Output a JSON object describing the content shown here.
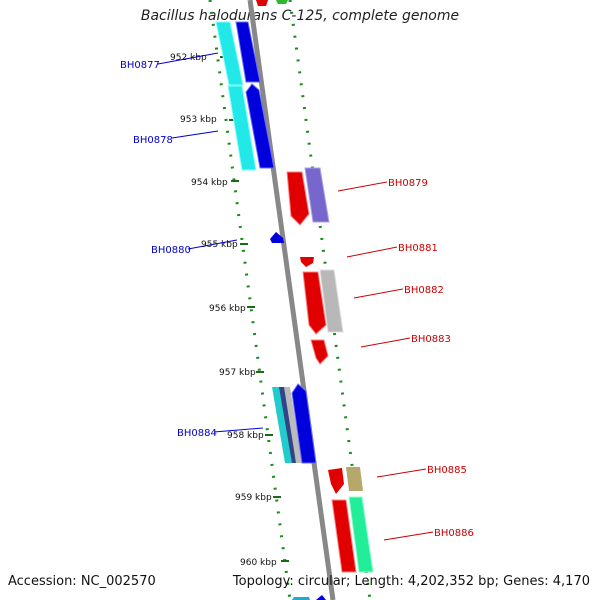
{
  "title": "Bacillus halodurans C-125, complete genome",
  "footer": {
    "accession": "Accession: NC_002570",
    "summary": "Topology: circular; Length: 4,202,352 bp; Genes: 4,170"
  },
  "ticks": [
    "952 kbp",
    "953 kbp",
    "954 kbp",
    "955 kbp",
    "956 kbp",
    "957 kbp",
    "958 kbp",
    "959 kbp",
    "960 kbp"
  ],
  "genes": [
    {
      "name": "BH0877",
      "strand": "reverse",
      "color": "#0000cc"
    },
    {
      "name": "BH0878",
      "strand": "reverse",
      "color": "#0000cc"
    },
    {
      "name": "BH0879",
      "strand": "forward",
      "color": "#cc0000"
    },
    {
      "name": "BH0880",
      "strand": "reverse",
      "color": "#0000cc"
    },
    {
      "name": "BH0881",
      "strand": "forward",
      "color": "#cc0000"
    },
    {
      "name": "BH0882",
      "strand": "forward",
      "color": "#cc0000"
    },
    {
      "name": "BH0883",
      "strand": "forward",
      "color": "#cc0000"
    },
    {
      "name": "BH0884",
      "strand": "reverse",
      "color": "#0000cc"
    },
    {
      "name": "BH0885",
      "strand": "forward",
      "color": "#cc0000"
    },
    {
      "name": "BH0886",
      "strand": "forward",
      "color": "#cc0000"
    }
  ]
}
